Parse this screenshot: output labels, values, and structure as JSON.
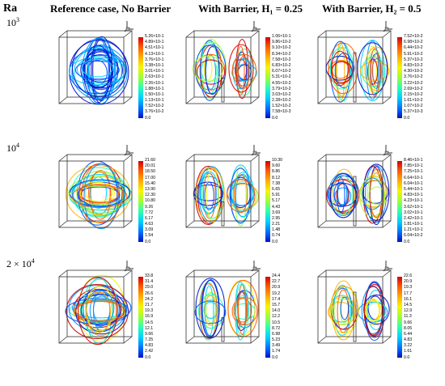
{
  "header": {
    "ra_label": "Ra",
    "col1": "Reference case, No Barrier",
    "col2": "With Barrier, H₁ = 0.25",
    "col3": "With Barrier, H₂ = 0.5"
  },
  "rows": [
    {
      "ra_text": "10",
      "ra_exp": "3"
    },
    {
      "ra_text": "10",
      "ra_exp": "4"
    },
    {
      "ra_text": "2 × 10",
      "ra_exp": "4"
    }
  ],
  "colorbars": [
    [
      "5.26×10-1",
      "4.89×10-1",
      "4.51×10-1",
      "4.13×10-1",
      "3.76×10-1",
      "3.38×10-1",
      "3.01×10-1",
      "2.63×10-1",
      "2.26×10-1",
      "1.88×10-1",
      "1.50×10-1",
      "1.13×10-1",
      "7.52×10-2",
      "3.76×10-2",
      "0.0"
    ],
    [
      "1.06×10-1",
      "9.86×10-2",
      "9.10×10-2",
      "8.34×10-2",
      "7.58×10-2",
      "6.83×10-2",
      "6.07×10-2",
      "5.31×10-2",
      "4.55×10-2",
      "3.79×10-2",
      "3.03×10-2",
      "2.28×10-2",
      "1.52×10-2",
      "7.58×10-3",
      "0.0"
    ],
    [
      "7.52×10-2",
      "6.98×10-2",
      "6.44×10-2",
      "5.91×10-2",
      "5.37×10-2",
      "4.83×10-2",
      "4.30×10-2",
      "3.76×10-2",
      "3.22×10-2",
      "2.69×10-2",
      "2.15×10-2",
      "1.61×10-2",
      "1.07×10-2",
      "5.37×10-3",
      "0.0"
    ],
    [
      "21.60",
      "20.01",
      "18.50",
      "17.00",
      "15.40",
      "13.90",
      "12.30",
      "10.80",
      "9.26",
      "7.72",
      "6.17",
      "4.63",
      "3.09",
      "1.54",
      "0.0"
    ],
    [
      "10.30",
      "9.60",
      "8.86",
      "8.12",
      "7.38",
      "6.65",
      "5.91",
      "5.17",
      "4.43",
      "3.69",
      "2.95",
      "2.21",
      "1.48",
      "0.74",
      "0.0"
    ],
    [
      "8.46×10-1",
      "7.85×10-1",
      "7.25×10-1",
      "6.64×10-1",
      "6.04×10-1",
      "5.44×10-1",
      "4.83×10-1",
      "4.23×10-1",
      "3.62×10-1",
      "3.02×10-1",
      "2.42×10-1",
      "1.81×10-1",
      "1.21×10-1",
      "6.04×10-2",
      "0.0"
    ],
    [
      "33.8",
      "31.4",
      "29.0",
      "26.6",
      "24.2",
      "21.7",
      "19.3",
      "16.9",
      "14.5",
      "12.1",
      "9.66",
      "7.25",
      "4.83",
      "2.42",
      "0.0"
    ],
    [
      "24.4",
      "22.7",
      "20.9",
      "19.2",
      "17.4",
      "15.7",
      "14.0",
      "12.2",
      "10.5",
      "8.72",
      "6.98",
      "5.23",
      "3.49",
      "1.74",
      "0.0"
    ],
    [
      "22.6",
      "20.9",
      "19.3",
      "17.7",
      "16.1",
      "14.5",
      "12.9",
      "11.3",
      "9.66",
      "8.05",
      "6.44",
      "4.83",
      "3.22",
      "1.61",
      "0.0"
    ]
  ],
  "colors": {
    "ramp_top": "#d40000",
    "ramp_bottom": "#0010c8",
    "frame": "#333333"
  }
}
